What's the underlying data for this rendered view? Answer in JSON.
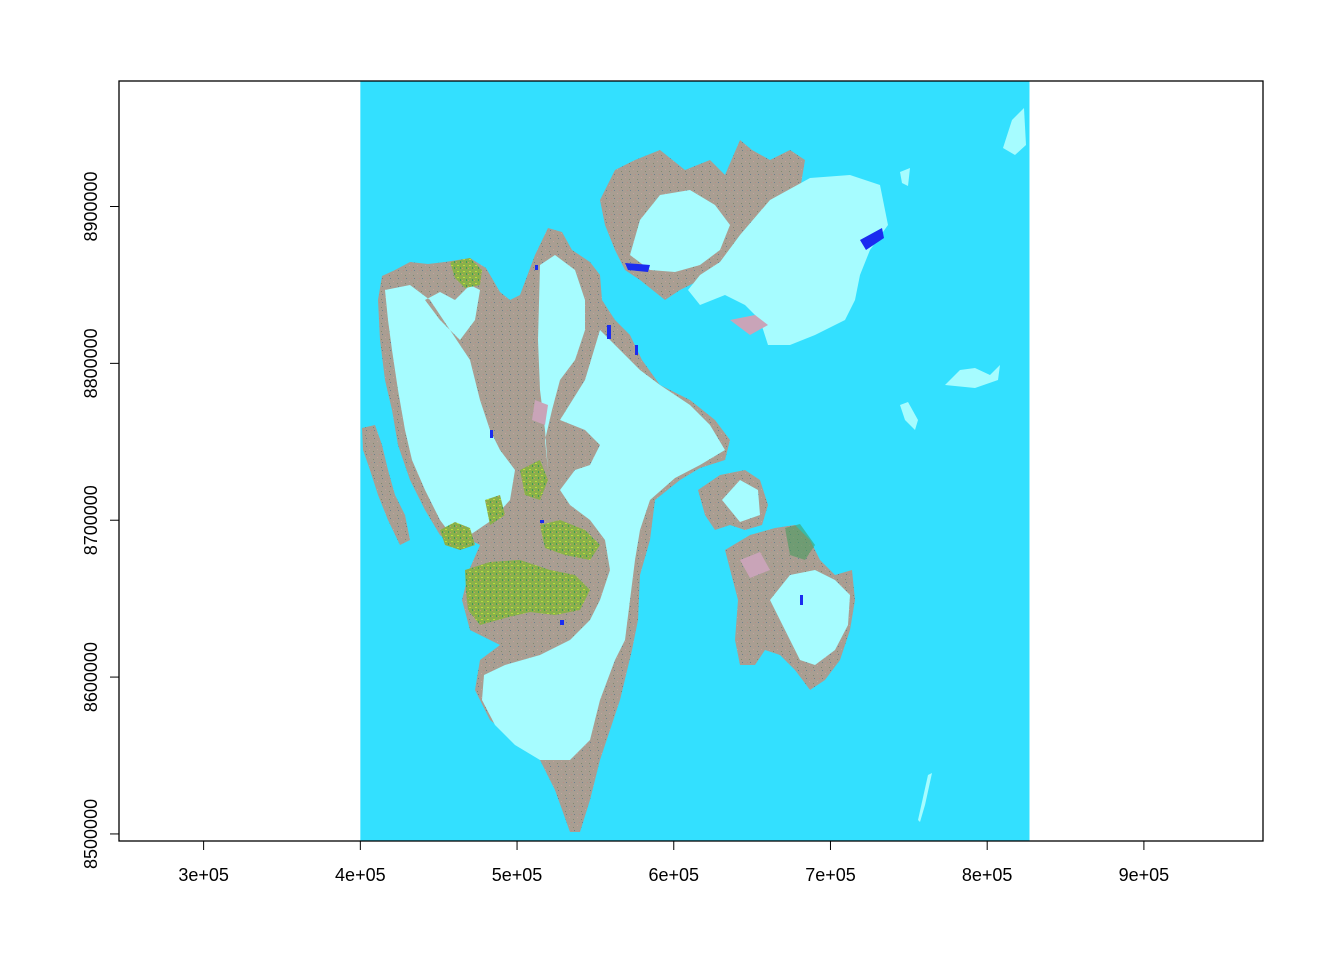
{
  "chart_data": {
    "type": "raster-map",
    "xlim": [
      246000,
      976000
    ],
    "ylim": [
      8495500,
      8980000
    ],
    "x_ticks": [
      {
        "value": 300000,
        "label": "3e+05"
      },
      {
        "value": 400000,
        "label": "4e+05"
      },
      {
        "value": 500000,
        "label": "5e+05"
      },
      {
        "value": 600000,
        "label": "6e+05"
      },
      {
        "value": 700000,
        "label": "7e+05"
      },
      {
        "value": 800000,
        "label": "8e+05"
      },
      {
        "value": 900000,
        "label": "9e+05"
      }
    ],
    "y_ticks": [
      {
        "value": 8500000,
        "label": "8500000"
      },
      {
        "value": 8600000,
        "label": "8600000"
      },
      {
        "value": 8700000,
        "label": "8700000"
      },
      {
        "value": 8800000,
        "label": "8800000"
      },
      {
        "value": 8900000,
        "label": "8900000"
      }
    ],
    "raster_extent": {
      "xmin": 400000,
      "xmax": 827000,
      "ymin": 8495500,
      "ymax": 8980000
    },
    "colors": {
      "sea": "#33e0ff",
      "ice": "#a6fcff",
      "rock": "#a99e92",
      "vegetation": "#8ab04a",
      "bright_veg": "#b8e03a",
      "moss": "#3f9a5a",
      "water_blue": "#1a2cf0",
      "pink_tundra": "#c9a4b8",
      "axis": "#000000",
      "background": "#ffffff"
    },
    "grid": false,
    "legend": "none"
  }
}
